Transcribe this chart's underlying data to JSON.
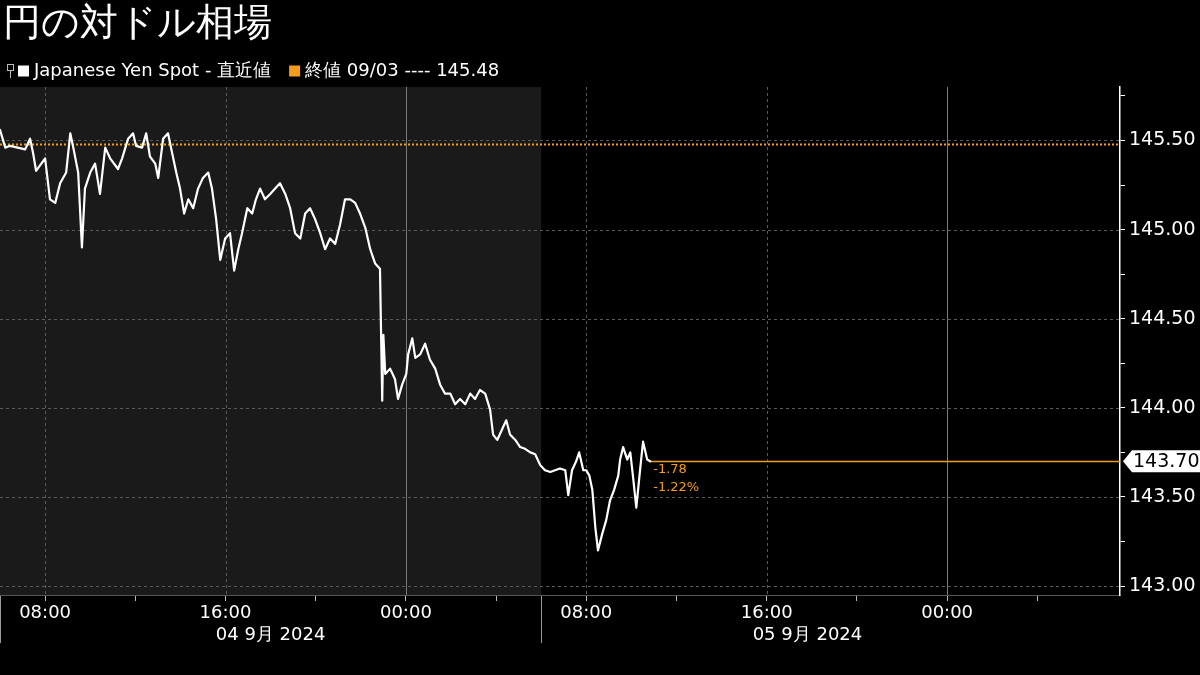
{
  "chart_data": {
    "type": "line",
    "title": "円の対ドル相場",
    "x": [
      "2024-09-04T06:00",
      "2024-09-04T06:14",
      "2024-09-04T06:27",
      "2024-09-04T07:07",
      "2024-09-04T07:20",
      "2024-09-04T07:28",
      "2024-09-04T07:36",
      "2024-09-04T08:00",
      "2024-09-04T08:13",
      "2024-09-04T08:27",
      "2024-09-04T08:40",
      "2024-09-04T08:56",
      "2024-09-04T09:07",
      "2024-09-04T09:15",
      "2024-09-04T09:28",
      "2024-09-04T09:38",
      "2024-09-04T09:46",
      "2024-09-04T10:00",
      "2024-09-04T10:13",
      "2024-09-04T10:26",
      "2024-09-04T10:40",
      "2024-09-04T10:53",
      "2024-09-04T11:14",
      "2024-09-04T11:25",
      "2024-09-04T11:41",
      "2024-09-04T11:54",
      "2024-09-04T12:02",
      "2024-09-04T12:18",
      "2024-09-04T12:29",
      "2024-09-04T12:39",
      "2024-09-04T12:53",
      "2024-09-04T13:01",
      "2024-09-04T13:14",
      "2024-09-04T13:27",
      "2024-09-04T13:38",
      "2024-09-04T13:49",
      "2024-09-04T13:59",
      "2024-09-04T14:10",
      "2024-09-04T14:21",
      "2024-09-04T14:34",
      "2024-09-04T14:47",
      "2024-09-04T15:00",
      "2024-09-04T15:14",
      "2024-09-04T15:24",
      "2024-09-04T15:35",
      "2024-09-04T15:46",
      "2024-09-04T15:59",
      "2024-09-04T16:12",
      "2024-09-04T16:23",
      "2024-09-04T16:34",
      "2024-09-04T16:44",
      "2024-09-04T16:58",
      "2024-09-04T17:11",
      "2024-09-04T17:21",
      "2024-09-04T17:32",
      "2024-09-04T17:45",
      "2024-09-04T17:59",
      "2024-09-04T18:12",
      "2024-09-04T18:25",
      "2024-09-04T18:39",
      "2024-09-04T18:52",
      "2024-09-04T19:05",
      "2024-09-04T19:19",
      "2024-09-04T19:32",
      "2024-09-04T19:45",
      "2024-09-04T19:58",
      "2024-09-04T20:12",
      "2024-09-04T20:25",
      "2024-09-04T20:38",
      "2024-09-04T20:52",
      "2024-09-04T21:05",
      "2024-09-04T21:18",
      "2024-09-04T21:32",
      "2024-09-04T21:45",
      "2024-09-04T21:58",
      "2024-09-04T22:12",
      "2024-09-04T22:25",
      "2024-09-04T22:38",
      "2024-09-04T22:51",
      "2024-09-04T22:57",
      "2024-09-04T23:00",
      "2024-09-04T23:05",
      "2024-09-04T23:18",
      "2024-09-04T23:31",
      "2024-09-04T23:39",
      "2024-09-04T23:50",
      "2024-09-05T00:01",
      "2024-09-05T00:06",
      "2024-09-05T00:17",
      "2024-09-05T00:25",
      "2024-09-05T00:38",
      "2024-09-05T00:51",
      "2024-09-05T01:04",
      "2024-09-05T01:18",
      "2024-09-05T01:31",
      "2024-09-05T01:44",
      "2024-09-05T01:58",
      "2024-09-05T02:11",
      "2024-09-05T02:24",
      "2024-09-05T02:38",
      "2024-09-05T02:51",
      "2024-09-05T03:04",
      "2024-09-05T03:17",
      "2024-09-05T03:31",
      "2024-09-05T03:44",
      "2024-09-05T03:52",
      "2024-09-05T04:03",
      "2024-09-05T04:16",
      "2024-09-05T04:27",
      "2024-09-05T04:37",
      "2024-09-05T04:51",
      "2024-09-05T05:04",
      "2024-09-05T05:17",
      "2024-09-05T05:31",
      "2024-09-05T05:44",
      "2024-09-05T05:57",
      "2024-09-05T06:10",
      "2024-09-05T06:24",
      "2024-09-05T06:37",
      "2024-09-05T06:50",
      "2024-09-05T07:04",
      "2024-09-05T07:12",
      "2024-09-05T07:22",
      "2024-09-05T07:33",
      "2024-09-05T07:41",
      "2024-09-05T07:52",
      "2024-09-05T08:00",
      "2024-09-05T08:08",
      "2024-09-05T08:16",
      "2024-09-05T08:24",
      "2024-09-05T08:31",
      "2024-09-05T08:42",
      "2024-09-05T08:53",
      "2024-09-05T09:03",
      "2024-09-05T09:14",
      "2024-09-05T09:25",
      "2024-09-05T09:30",
      "2024-09-05T09:38",
      "2024-09-05T09:49",
      "2024-09-05T09:57",
      "2024-09-05T10:05",
      "2024-09-05T10:13",
      "2024-09-05T10:23",
      "2024-09-05T10:31",
      "2024-09-05T10:42",
      "2024-09-05T10:50"
    ],
    "series": [
      {
        "name": "Japanese Yen Spot - 直近値",
        "color": "#ffffff",
        "values": [
          145.56,
          145.46,
          145.47,
          145.45,
          145.51,
          145.43,
          145.33,
          145.4,
          145.17,
          145.15,
          145.26,
          145.32,
          145.54,
          145.46,
          145.32,
          144.9,
          145.23,
          145.32,
          145.37,
          145.2,
          145.46,
          145.4,
          145.34,
          145.4,
          145.51,
          145.54,
          145.47,
          145.46,
          145.54,
          145.41,
          145.37,
          145.29,
          145.51,
          145.54,
          145.43,
          145.32,
          145.23,
          145.09,
          145.17,
          145.12,
          145.23,
          145.29,
          145.32,
          145.23,
          145.06,
          144.83,
          144.95,
          144.98,
          144.77,
          144.89,
          144.98,
          145.12,
          145.09,
          145.17,
          145.23,
          145.17,
          145.2,
          145.23,
          145.26,
          145.2,
          145.12,
          144.98,
          144.95,
          145.09,
          145.12,
          145.06,
          144.98,
          144.89,
          144.95,
          144.92,
          145.03,
          145.17,
          145.17,
          145.15,
          145.09,
          145.01,
          144.89,
          144.81,
          144.78,
          144.04,
          144.41,
          144.19,
          144.22,
          144.16,
          144.05,
          144.13,
          144.19,
          144.3,
          144.39,
          144.28,
          144.3,
          144.36,
          144.27,
          144.22,
          144.13,
          144.08,
          144.08,
          144.02,
          144.05,
          144.02,
          144.08,
          144.05,
          144.1,
          144.08,
          143.99,
          143.85,
          143.82,
          143.88,
          143.93,
          143.85,
          143.82,
          143.78,
          143.77,
          143.75,
          143.74,
          143.68,
          143.65,
          143.64,
          143.65,
          143.66,
          143.65,
          143.51,
          143.65,
          143.7,
          143.75,
          143.65,
          143.65,
          143.62,
          143.54,
          143.33,
          143.2,
          143.29,
          143.37,
          143.48,
          143.54,
          143.62,
          143.71,
          143.78,
          143.71,
          143.75,
          143.6,
          143.44,
          143.65,
          143.81,
          143.71,
          143.7
        ]
      }
    ],
    "xlim": [
      "2024-09-04T06:00",
      "2024-09-06T07:40"
    ],
    "xticks": [
      {
        "value": "2024-09-04T08:00",
        "label": "08:00"
      },
      {
        "value": "2024-09-04T12:00",
        "label": null
      },
      {
        "value": "2024-09-04T16:00",
        "label": "16:00"
      },
      {
        "value": "2024-09-04T20:00",
        "label": null
      },
      {
        "value": "2024-09-05T00:00",
        "label": "00:00"
      },
      {
        "value": "2024-09-05T04:00",
        "label": null
      },
      {
        "value": "2024-09-05T08:00",
        "label": "08:00"
      },
      {
        "value": "2024-09-05T12:00",
        "label": null
      },
      {
        "value": "2024-09-05T16:00",
        "label": "16:00"
      },
      {
        "value": "2024-09-05T20:00",
        "label": null
      },
      {
        "value": "2024-09-06T00:00",
        "label": "00:00"
      },
      {
        "value": "2024-09-06T04:00",
        "label": null
      }
    ],
    "ylim": [
      142.95,
      145.8
    ],
    "yticks": [
      {
        "value": 143,
        "label": "143.00"
      },
      {
        "value": 143.25,
        "label": null
      },
      {
        "value": 143.5,
        "label": "143.50"
      },
      {
        "value": 143.75,
        "label": null
      },
      {
        "value": 144,
        "label": "144.00"
      },
      {
        "value": 144.25,
        "label": null
      },
      {
        "value": 144.5,
        "label": "144.50"
      },
      {
        "value": 144.75,
        "label": null
      },
      {
        "value": 145,
        "label": "145.00"
      },
      {
        "value": 145.25,
        "label": null
      },
      {
        "value": 145.5,
        "label": "145.50"
      },
      {
        "value": 145.75,
        "label": null
      }
    ],
    "ref_lines": [
      {
        "axis": "y",
        "value": 145.48,
        "label": "終値 09/03 ---- 145.48",
        "color": "#f59d1b",
        "line_style": "dotted"
      },
      {
        "axis": "y",
        "value": 143.7,
        "label": "143.70",
        "color": "#f59d1b",
        "line_style": "solid"
      }
    ],
    "bands": [
      {
        "axis": "x",
        "from": "2024-09-04T06:00",
        "to": "2024-09-05T06:00",
        "color": "#1a1a1a"
      }
    ],
    "annotations": [
      {
        "text": "-1.78",
        "x": "2024-09-05T10:50",
        "y": 143.7
      },
      {
        "text": "-1.22%",
        "x": "2024-09-05T10:50",
        "y": 143.7
      },
      "04 9月 2024",
      "05 9月 2024"
    ],
    "grid": true,
    "legend": "top left",
    "marker": "none",
    "line_style": "solid"
  }
}
